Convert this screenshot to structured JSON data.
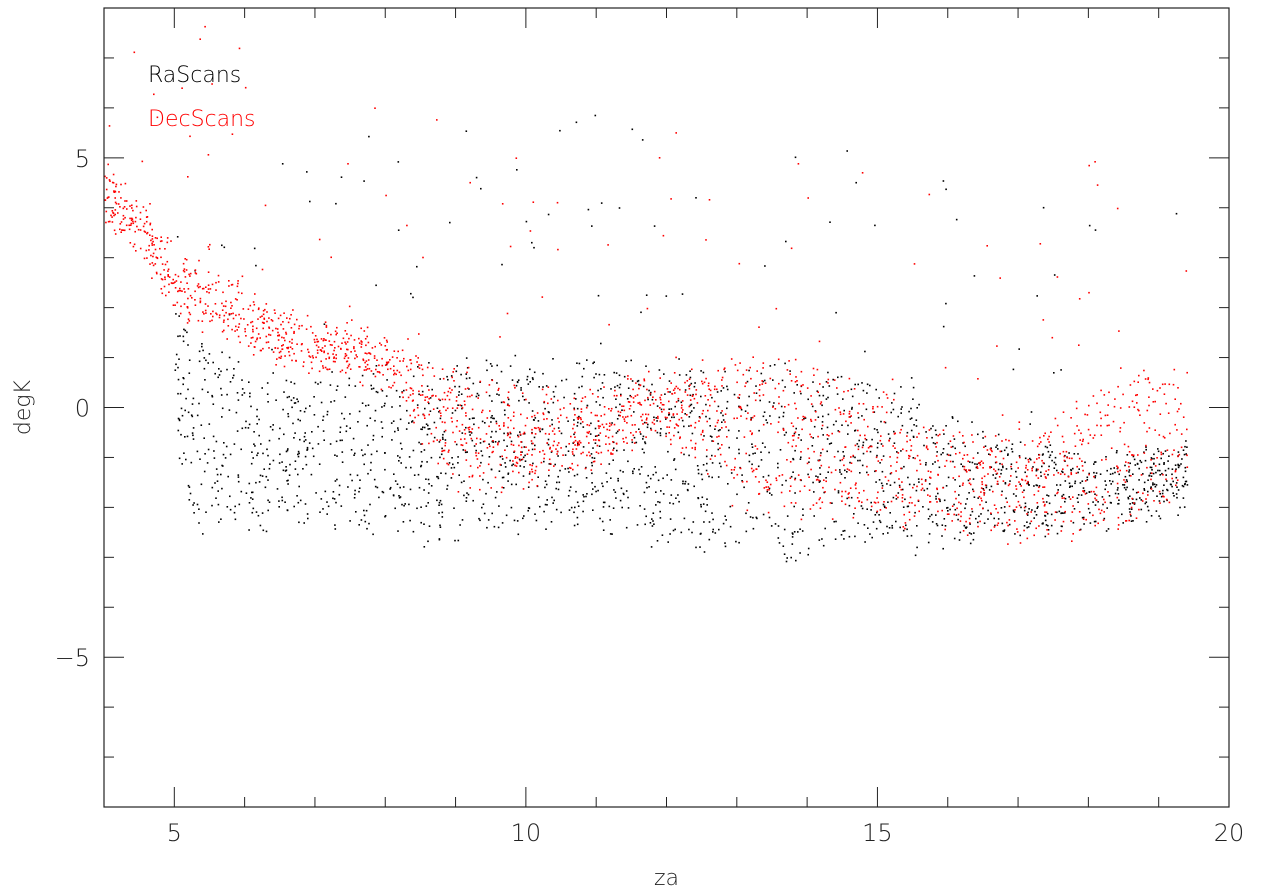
{
  "chart_data": {
    "type": "scatter",
    "title": "",
    "xlabel": "za",
    "ylabel": "degK",
    "xlim": [
      4.0,
      20.0
    ],
    "ylim": [
      -8.0,
      8.0
    ],
    "xticks": [
      5,
      10,
      15,
      20
    ],
    "xtick_labels": [
      "5",
      "10",
      "15",
      "20"
    ],
    "yticks": [
      -5,
      0,
      5
    ],
    "ytick_labels": [
      "−5",
      "0",
      "5"
    ],
    "x_minor_step": 1,
    "y_minor_step": 1,
    "grid": false,
    "legend_position": "top-left",
    "series": [
      {
        "name": "RaScans",
        "color": "#000000",
        "marker": "dot",
        "trend": {
          "x": [
            5.0,
            5.3,
            6.0,
            7.0,
            8.0,
            9.0,
            10.0,
            11.0,
            12.0,
            13.0,
            14.0,
            15.0,
            16.0,
            17.0,
            18.0,
            19.0,
            19.4
          ],
          "upper": [
            2.0,
            1.3,
            0.6,
            0.5,
            0.7,
            0.8,
            0.8,
            1.0,
            0.8,
            0.7,
            0.8,
            0.4,
            -0.3,
            -0.8,
            -1.0,
            -0.9,
            -0.9
          ],
          "lower": [
            -0.5,
            -2.6,
            -2.4,
            -2.2,
            -2.5,
            -2.6,
            -2.2,
            -2.4,
            -2.6,
            -2.7,
            -2.9,
            -2.6,
            -2.7,
            -2.5,
            -2.3,
            -2.0,
            -1.9
          ]
        }
      },
      {
        "name": "DecScans",
        "color": "#ff0000",
        "marker": "dot",
        "trend": {
          "x": [
            4.0,
            4.5,
            5.0,
            6.0,
            7.0,
            8.0,
            9.0,
            10.0,
            11.0,
            12.0,
            13.0,
            14.0,
            15.0,
            16.0,
            17.0,
            18.0,
            19.0,
            19.4
          ],
          "upper": [
            4.8,
            4.0,
            3.0,
            2.2,
            1.6,
            1.4,
            0.6,
            0.3,
            0.2,
            0.6,
            1.0,
            0.8,
            0.2,
            -0.6,
            -0.8,
            0.3,
            1.0,
            1.2
          ],
          "lower": [
            3.8,
            3.2,
            2.0,
            1.2,
            0.8,
            0.6,
            -1.6,
            -1.4,
            -1.0,
            -0.4,
            -1.8,
            -2.0,
            -2.2,
            -2.4,
            -2.6,
            -2.3,
            -2.1,
            -1.8
          ]
        }
      }
    ]
  }
}
